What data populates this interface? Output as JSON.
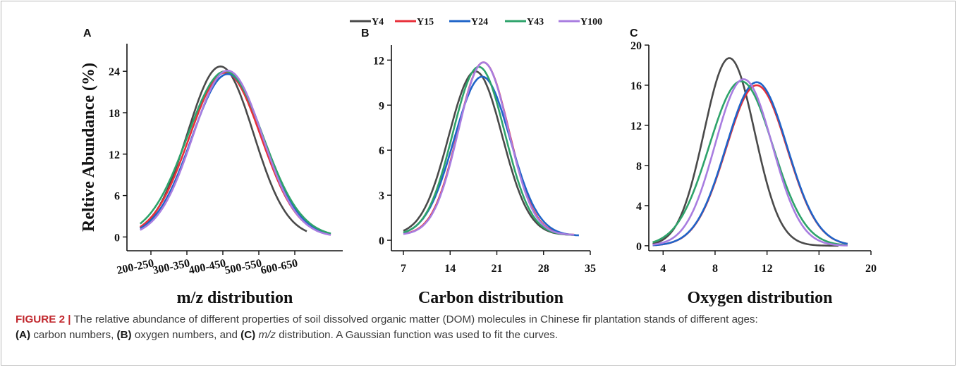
{
  "caption": {
    "figure_label": "FIGURE 2 |",
    "text_1": "The relative abundance of different properties of soil dissolved organic matter (DOM) molecules in Chinese fir plantation stands of different ages:",
    "tag_a": "(A)",
    "text_2": "carbon numbers,",
    "tag_b": "(B)",
    "text_3": "oxygen numbers, and",
    "tag_c": "(C)",
    "mz_italic": "m/z",
    "text_4": "distribution. A Gaussian function was used to fit the curves."
  },
  "legend": {
    "placement": "top-center",
    "entries": [
      {
        "name": "Y4",
        "color": "#4a4a4a"
      },
      {
        "name": "Y15",
        "color": "#e8303a"
      },
      {
        "name": "Y24",
        "color": "#1f64c8"
      },
      {
        "name": "Y43",
        "color": "#2ea36b"
      },
      {
        "name": "Y100",
        "color": "#a87de0"
      }
    ]
  },
  "chart_data": [
    {
      "panel": "A",
      "type": "line",
      "xlabel": "m/z distribution",
      "ylabel": "Reltive Abundance (%)",
      "categories": [
        "200-250",
        "300-350",
        "400-450",
        "500-550",
        "600-650"
      ],
      "xlim": [
        0,
        9
      ],
      "ylim": [
        -2,
        28
      ],
      "yticks": [
        0,
        6,
        12,
        18,
        24
      ],
      "grid": false,
      "series": [
        {
          "name": "Y4",
          "color": "#4a4a4a",
          "amp": 24.7,
          "mu": 3.9,
          "sigma": 1.38,
          "x_start": 0.55,
          "x_end": 7.5
        },
        {
          "name": "Y15",
          "color": "#e8303a",
          "amp": 23.8,
          "mu": 4.1,
          "sigma": 1.5,
          "x_start": 0.55,
          "x_end": 8.5
        },
        {
          "name": "Y24",
          "color": "#1f64c8",
          "amp": 23.6,
          "mu": 4.2,
          "sigma": 1.5,
          "x_start": 0.55,
          "x_end": 8.5
        },
        {
          "name": "Y43",
          "color": "#2ea36b",
          "amp": 24.0,
          "mu": 4.1,
          "sigma": 1.58,
          "x_start": 0.55,
          "x_end": 8.5
        },
        {
          "name": "Y100",
          "color": "#a87de0",
          "amp": 24.1,
          "mu": 4.2,
          "sigma": 1.45,
          "x_start": 0.55,
          "x_end": 8.5
        }
      ]
    },
    {
      "panel": "B",
      "type": "line",
      "xlabel": "Carbon distribution",
      "ylabel": "",
      "xticks": [
        7,
        14,
        21,
        28,
        35
      ],
      "xlim": [
        5.2,
        35
      ],
      "ylim": [
        -0.7,
        13
      ],
      "yticks": [
        0,
        3,
        6,
        9,
        12
      ],
      "grid": false,
      "series": [
        {
          "name": "Y4",
          "color": "#4a4a4a",
          "amp": 10.9,
          "mu": 17.8,
          "sigma": 4.0,
          "base": 0.35,
          "x_start": 7,
          "x_end": 32.6
        },
        {
          "name": "Y15",
          "color": "#e8303a",
          "amp": 11.5,
          "mu": 19.0,
          "sigma": 3.8,
          "base": 0.35,
          "x_start": 7,
          "x_end": 32.6
        },
        {
          "name": "Y24",
          "color": "#1f64c8",
          "amp": 10.6,
          "mu": 18.8,
          "sigma": 4.2,
          "base": 0.3,
          "x_start": 7,
          "x_end": 33.3
        },
        {
          "name": "Y43",
          "color": "#2ea36b",
          "amp": 11.2,
          "mu": 18.3,
          "sigma": 3.9,
          "base": 0.35,
          "x_start": 7,
          "x_end": 32.6
        },
        {
          "name": "Y100",
          "color": "#a87de0",
          "amp": 11.5,
          "mu": 19.0,
          "sigma": 3.75,
          "base": 0.35,
          "x_start": 7,
          "x_end": 32.6
        }
      ]
    },
    {
      "panel": "C",
      "type": "line",
      "xlabel": "Oxygen distribution",
      "ylabel": "",
      "xticks": [
        4,
        8,
        12,
        16,
        20
      ],
      "xlim": [
        2.9,
        20
      ],
      "ylim": [
        -0.5,
        20
      ],
      "yticks": [
        0,
        4,
        8,
        12,
        16,
        20
      ],
      "grid": false,
      "series": [
        {
          "name": "Y4",
          "color": "#4a4a4a",
          "amp": 18.7,
          "mu": 9.1,
          "sigma": 1.95,
          "x_start": 3.2,
          "x_end": 17.5
        },
        {
          "name": "Y15",
          "color": "#e8303a",
          "amp": 16.0,
          "mu": 11.2,
          "sigma": 2.35,
          "x_start": 3.2,
          "x_end": 18.2
        },
        {
          "name": "Y24",
          "color": "#1f64c8",
          "amp": 16.3,
          "mu": 11.2,
          "sigma": 2.35,
          "x_start": 3.2,
          "x_end": 18.2
        },
        {
          "name": "Y43",
          "color": "#2ea36b",
          "amp": 16.4,
          "mu": 10.0,
          "sigma": 2.45,
          "x_start": 3.2,
          "x_end": 18.2
        },
        {
          "name": "Y100",
          "color": "#a87de0",
          "amp": 16.6,
          "mu": 10.2,
          "sigma": 2.2,
          "x_start": 3.2,
          "x_end": 18.2
        }
      ]
    }
  ]
}
